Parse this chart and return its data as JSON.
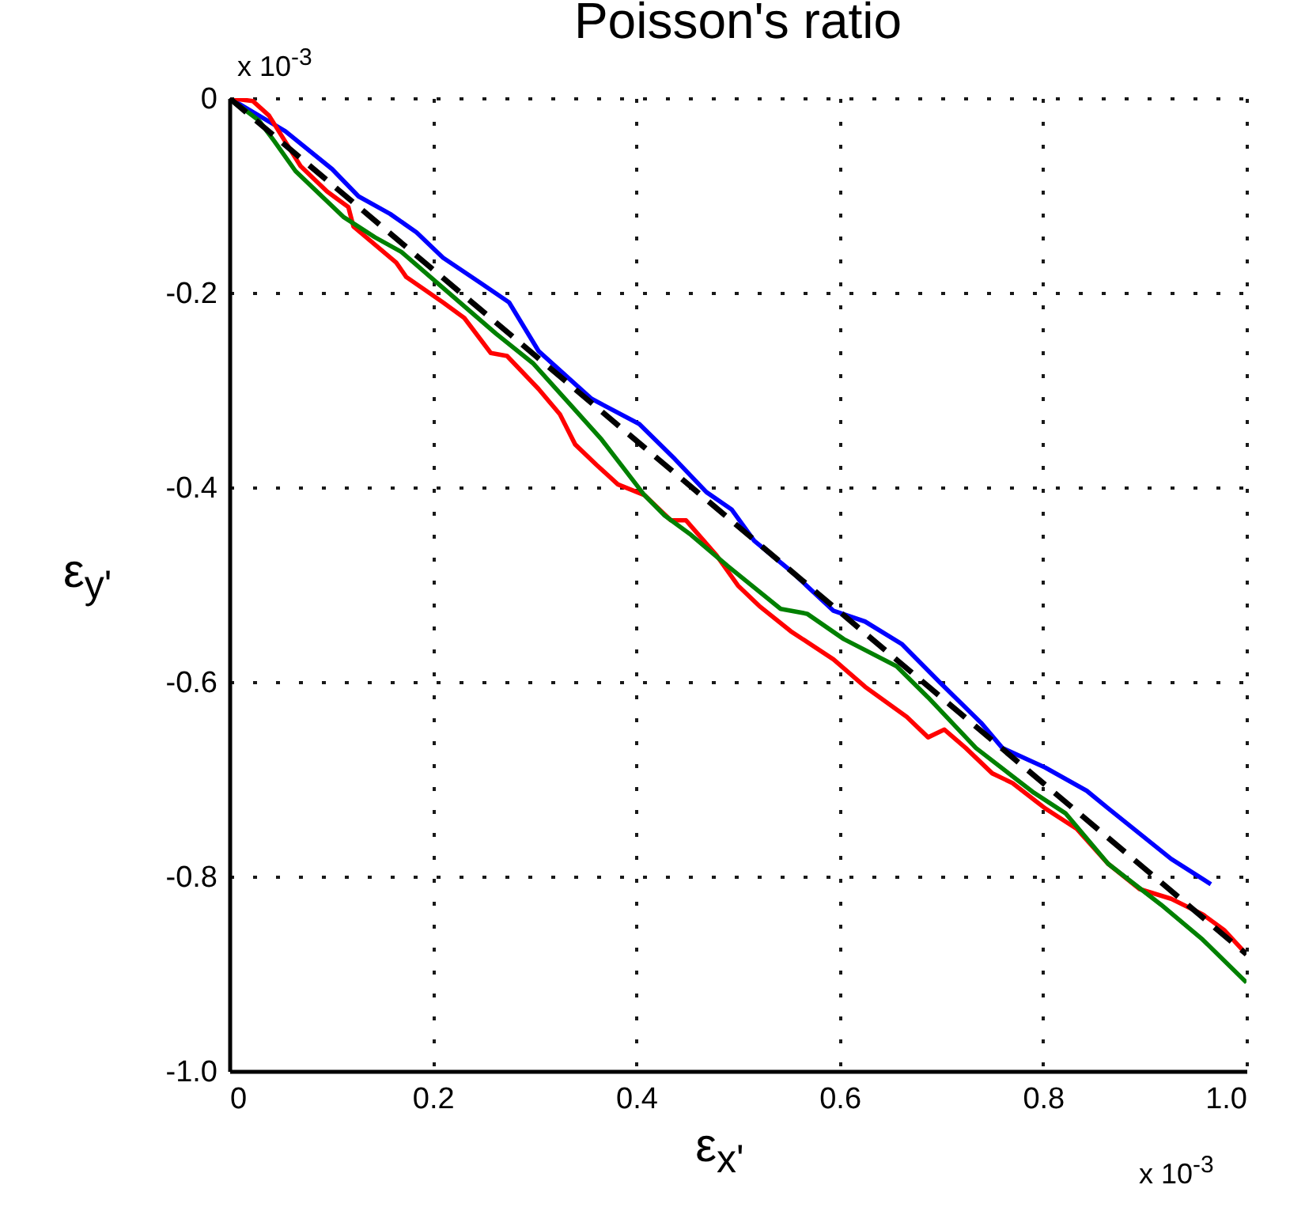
{
  "chart_data": {
    "type": "line",
    "title": "Poisson's ratio",
    "xlabel": "ε$_{x'}$",
    "ylabel": "ε$_{y'}$",
    "annotations": [
      "x 10$^{-3}$",
      "x 10$^{-3}$"
    ],
    "xlim": [
      0,
      1.0
    ],
    "ylim": [
      -1.0,
      0
    ],
    "xticks": [
      {
        "value": 0,
        "label": "0"
      },
      0.2,
      0.4,
      0.6,
      0.8,
      {
        "value": 1.0,
        "label": "1.0"
      }
    ],
    "yticks": [
      {
        "value": -1.0,
        "label": "-1.0"
      },
      -0.8,
      -0.6,
      -0.4,
      -0.2,
      {
        "value": 0,
        "label": "0"
      }
    ],
    "grid": true,
    "series": [
      {
        "color": "#0000ff",
        "x": [
          0,
          0.055,
          0.101,
          0.127,
          0.158,
          0.184,
          0.21,
          0.247,
          0.275,
          0.304,
          0.356,
          0.403,
          0.438,
          0.469,
          0.494,
          0.516,
          0.552,
          0.594,
          0.625,
          0.661,
          0.698,
          0.739,
          0.76,
          0.802,
          0.843,
          0.864,
          0.895,
          0.926,
          0.965
        ],
        "values": [
          0,
          -0.034,
          -0.073,
          -0.101,
          -0.119,
          -0.138,
          -0.164,
          -0.19,
          -0.21,
          -0.26,
          -0.309,
          -0.335,
          -0.371,
          -0.405,
          -0.423,
          -0.455,
          -0.486,
          -0.527,
          -0.538,
          -0.561,
          -0.6,
          -0.642,
          -0.668,
          -0.688,
          -0.712,
          -0.73,
          -0.756,
          -0.782,
          -0.808
        ]
      },
      {
        "color": "#ff0000",
        "x": [
          0,
          0.023,
          0.039,
          0.07,
          0.096,
          0.117,
          0.122,
          0.164,
          0.174,
          0.21,
          0.231,
          0.257,
          0.273,
          0.304,
          0.325,
          0.34,
          0.361,
          0.382,
          0.408,
          0.434,
          0.449,
          0.479,
          0.5,
          0.521,
          0.552,
          0.594,
          0.625,
          0.666,
          0.687,
          0.703,
          0.724,
          0.75,
          0.77,
          0.802,
          0.833,
          0.864,
          0.895,
          0.926,
          0.957,
          0.978,
          1.0
        ],
        "values": [
          0,
          -0.003,
          -0.018,
          -0.07,
          -0.096,
          -0.112,
          -0.132,
          -0.169,
          -0.184,
          -0.21,
          -0.226,
          -0.262,
          -0.265,
          -0.299,
          -0.325,
          -0.356,
          -0.377,
          -0.397,
          -0.408,
          -0.434,
          -0.434,
          -0.47,
          -0.501,
          -0.522,
          -0.548,
          -0.577,
          -0.605,
          -0.636,
          -0.657,
          -0.649,
          -0.668,
          -0.694,
          -0.704,
          -0.73,
          -0.751,
          -0.787,
          -0.813,
          -0.823,
          -0.839,
          -0.855,
          -0.88
        ]
      },
      {
        "color": "#008000",
        "x": [
          0,
          0.029,
          0.044,
          0.065,
          0.112,
          0.143,
          0.169,
          0.21,
          0.262,
          0.299,
          0.33,
          0.366,
          0.408,
          0.428,
          0.454,
          0.49,
          0.542,
          0.568,
          0.604,
          0.656,
          0.687,
          0.734,
          0.791,
          0.822,
          0.864,
          0.916,
          0.957,
          1.0
        ],
        "values": [
          0,
          -0.023,
          -0.044,
          -0.075,
          -0.122,
          -0.143,
          -0.158,
          -0.195,
          -0.242,
          -0.273,
          -0.309,
          -0.351,
          -0.408,
          -0.429,
          -0.449,
          -0.481,
          -0.525,
          -0.53,
          -0.556,
          -0.584,
          -0.616,
          -0.668,
          -0.714,
          -0.735,
          -0.787,
          -0.829,
          -0.865,
          -0.909
        ]
      },
      {
        "color": "#000000",
        "line_style": "dashed",
        "x": [
          0,
          1.0
        ],
        "values": [
          0,
          -0.88
        ]
      }
    ]
  }
}
